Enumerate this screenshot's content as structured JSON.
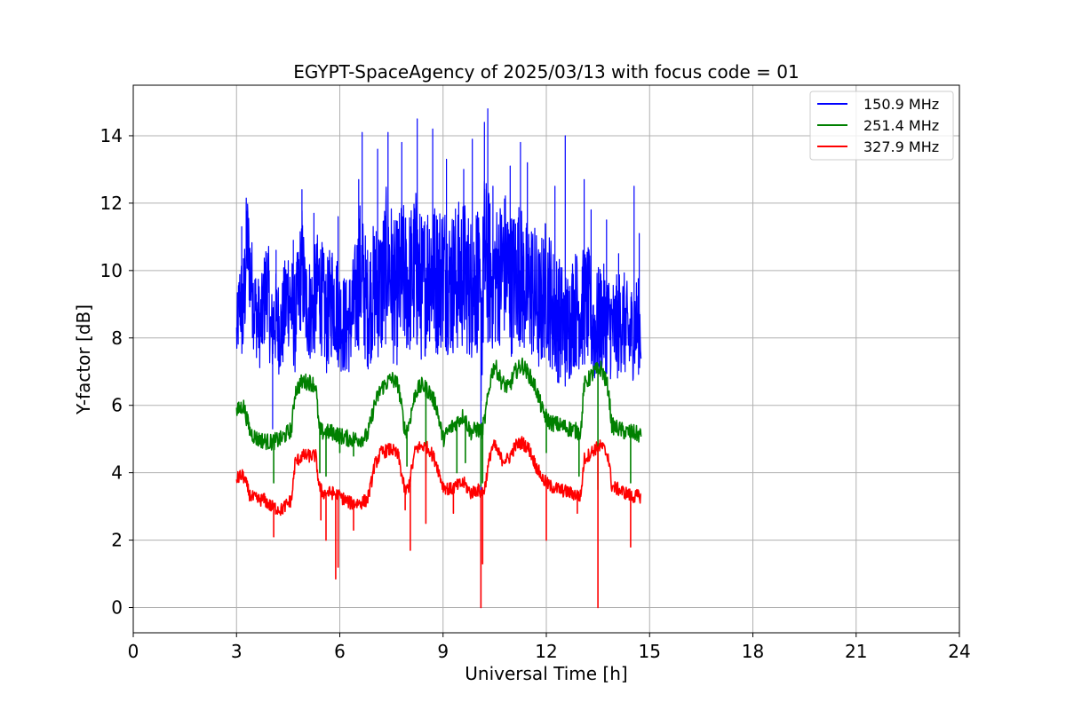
{
  "chart_data": {
    "type": "line",
    "title": "EGYPT-SpaceAgency of 2025/03/13 with focus code = 01",
    "xlabel": "Universal Time [h]",
    "ylabel": "Y-factor [dB]",
    "xlim": [
      0,
      24
    ],
    "ylim": [
      -0.75,
      15.5
    ],
    "xticks": [
      0,
      3,
      6,
      9,
      12,
      15,
      18,
      21,
      24
    ],
    "yticks": [
      0,
      2,
      4,
      6,
      8,
      10,
      12,
      14
    ],
    "grid": true,
    "legend_position": "top-right",
    "series": [
      {
        "name": "150.9 MHz",
        "color": "#0000ff",
        "x": [
          3.0,
          3.1,
          3.2,
          3.3,
          3.5,
          3.7,
          3.9,
          4.0,
          4.1,
          4.3,
          4.5,
          4.7,
          4.9,
          5.0,
          5.2,
          5.4,
          5.6,
          5.8,
          6.0,
          6.2,
          6.4,
          6.6,
          6.8,
          7.0,
          7.2,
          7.4,
          7.6,
          7.8,
          8.0,
          8.2,
          8.4,
          8.6,
          8.8,
          9.0,
          9.2,
          9.4,
          9.6,
          9.8,
          10.0,
          10.1,
          10.2,
          10.4,
          10.6,
          10.8,
          11.0,
          11.2,
          11.4,
          11.6,
          11.8,
          12.0,
          12.2,
          12.4,
          12.6,
          12.8,
          13.0,
          13.2,
          13.4,
          13.6,
          13.8,
          14.0,
          14.2,
          14.4,
          14.6,
          14.75
        ],
        "y": [
          8.0,
          9.2,
          8.6,
          11.0,
          9.0,
          8.3,
          9.8,
          8.0,
          8.6,
          8.2,
          9.4,
          8.4,
          10.2,
          9.0,
          8.8,
          9.6,
          8.5,
          9.3,
          8.6,
          8.3,
          8.8,
          10.0,
          8.9,
          9.5,
          9.4,
          10.4,
          9.2,
          9.8,
          9.6,
          10.0,
          9.4,
          10.2,
          9.7,
          10.0,
          9.6,
          9.8,
          9.9,
          9.5,
          9.9,
          8.0,
          10.4,
          9.8,
          9.9,
          10.2,
          9.6,
          10.0,
          9.4,
          9.5,
          8.8,
          9.6,
          8.8,
          8.5,
          8.2,
          8.9,
          8.8,
          9.0,
          8.2,
          8.6,
          8.4,
          8.2,
          8.6,
          8.0,
          8.4,
          8.3
        ],
        "amplitude": [
          1.0,
          1.3,
          2.0,
          1.6,
          1.4,
          1.3,
          1.6,
          1.3,
          1.5,
          1.4,
          1.7,
          1.5,
          1.8,
          1.6,
          1.6,
          1.8,
          1.7,
          1.8,
          1.6,
          1.5,
          1.7,
          2.2,
          1.9,
          2.0,
          2.2,
          2.4,
          2.2,
          2.3,
          2.2,
          2.5,
          2.2,
          2.4,
          2.3,
          2.3,
          2.2,
          2.3,
          2.3,
          2.2,
          2.4,
          2.2,
          2.6,
          2.3,
          2.2,
          2.3,
          2.2,
          2.2,
          2.1,
          2.2,
          2.0,
          2.1,
          2.0,
          1.9,
          1.8,
          1.8,
          1.8,
          1.8,
          1.7,
          1.7,
          1.6,
          1.6,
          1.6,
          1.5,
          1.5,
          1.4
        ],
        "spikes": [
          {
            "x": 3.15,
            "y": 11.3
          },
          {
            "x": 3.28,
            "y": 12.0
          },
          {
            "x": 4.05,
            "y": 5.3
          },
          {
            "x": 4.15,
            "y": 10.6
          },
          {
            "x": 4.65,
            "y": 10.9
          },
          {
            "x": 4.9,
            "y": 12.4
          },
          {
            "x": 5.25,
            "y": 11.7
          },
          {
            "x": 5.95,
            "y": 11.6
          },
          {
            "x": 6.55,
            "y": 12.7
          },
          {
            "x": 6.65,
            "y": 14.1
          },
          {
            "x": 7.1,
            "y": 13.6
          },
          {
            "x": 7.4,
            "y": 14.1
          },
          {
            "x": 7.8,
            "y": 13.8
          },
          {
            "x": 8.25,
            "y": 14.5
          },
          {
            "x": 8.7,
            "y": 14.2
          },
          {
            "x": 9.1,
            "y": 13.3
          },
          {
            "x": 9.6,
            "y": 13.0
          },
          {
            "x": 9.85,
            "y": 13.9
          },
          {
            "x": 10.1,
            "y": 0.0
          },
          {
            "x": 10.2,
            "y": 14.4
          },
          {
            "x": 10.3,
            "y": 14.8
          },
          {
            "x": 10.45,
            "y": 12.5
          },
          {
            "x": 10.95,
            "y": 13.1
          },
          {
            "x": 11.25,
            "y": 13.8
          },
          {
            "x": 11.45,
            "y": 13.2
          },
          {
            "x": 12.25,
            "y": 12.5
          },
          {
            "x": 12.55,
            "y": 14.0
          },
          {
            "x": 13.1,
            "y": 12.7
          },
          {
            "x": 13.3,
            "y": 11.8
          },
          {
            "x": 13.75,
            "y": 11.5
          },
          {
            "x": 14.1,
            "y": 10.5
          },
          {
            "x": 14.55,
            "y": 12.5
          },
          {
            "x": 14.7,
            "y": 11.1
          }
        ]
      },
      {
        "name": "251.4 MHz",
        "color": "#008000",
        "x": [
          3.0,
          3.1,
          3.2,
          3.4,
          3.6,
          4.0,
          4.3,
          4.6,
          4.7,
          4.9,
          5.1,
          5.3,
          5.4,
          5.5,
          5.8,
          6.0,
          6.3,
          6.6,
          6.8,
          6.9,
          7.0,
          7.2,
          7.5,
          7.7,
          7.9,
          8.0,
          8.2,
          8.4,
          8.6,
          8.8,
          9.0,
          9.2,
          9.4,
          9.6,
          9.8,
          10.0,
          10.1,
          10.2,
          10.4,
          10.5,
          10.7,
          10.9,
          11.1,
          11.3,
          11.5,
          11.7,
          11.9,
          12.1,
          12.4,
          12.7,
          13.0,
          13.1,
          13.4,
          13.6,
          13.8,
          13.9,
          14.1,
          14.3,
          14.5,
          14.75
        ],
        "y": [
          5.8,
          5.9,
          6.0,
          5.2,
          5.0,
          4.9,
          5.0,
          5.3,
          6.4,
          6.7,
          6.7,
          6.6,
          5.3,
          5.2,
          5.2,
          5.1,
          5.0,
          5.0,
          5.1,
          5.5,
          6.0,
          6.5,
          6.8,
          6.6,
          5.2,
          5.4,
          6.4,
          6.6,
          6.4,
          6.0,
          5.0,
          5.3,
          5.5,
          5.7,
          5.2,
          5.3,
          5.2,
          5.5,
          6.9,
          7.2,
          6.7,
          6.5,
          7.0,
          7.2,
          6.9,
          6.5,
          5.8,
          5.5,
          5.4,
          5.3,
          5.2,
          6.6,
          7.0,
          7.1,
          6.5,
          5.4,
          5.3,
          5.2,
          5.2,
          5.1
        ],
        "amplitude": 0.25,
        "dips": [
          {
            "x": 4.08,
            "y": 3.7
          },
          {
            "x": 5.42,
            "y": 4.0
          },
          {
            "x": 5.6,
            "y": 3.9
          },
          {
            "x": 6.0,
            "y": 4.6
          },
          {
            "x": 6.4,
            "y": 4.5
          },
          {
            "x": 7.95,
            "y": 4.2
          },
          {
            "x": 8.5,
            "y": 4.0
          },
          {
            "x": 9.4,
            "y": 4.0
          },
          {
            "x": 9.65,
            "y": 4.3
          },
          {
            "x": 10.1,
            "y": 3.6
          },
          {
            "x": 10.15,
            "y": 3.7
          },
          {
            "x": 12.0,
            "y": 4.6
          },
          {
            "x": 12.95,
            "y": 3.9
          },
          {
            "x": 13.5,
            "y": 3.5
          },
          {
            "x": 14.45,
            "y": 3.7
          }
        ]
      },
      {
        "name": "327.9 MHz",
        "color": "#ff0000",
        "x": [
          3.0,
          3.1,
          3.2,
          3.4,
          3.6,
          3.8,
          4.0,
          4.3,
          4.6,
          4.7,
          4.9,
          5.1,
          5.3,
          5.4,
          5.5,
          5.8,
          6.0,
          6.3,
          6.6,
          6.8,
          6.9,
          7.0,
          7.2,
          7.5,
          7.7,
          7.9,
          8.0,
          8.2,
          8.4,
          8.6,
          8.8,
          9.0,
          9.2,
          9.4,
          9.6,
          9.8,
          10.0,
          10.1,
          10.2,
          10.4,
          10.5,
          10.7,
          10.9,
          11.1,
          11.3,
          11.5,
          11.7,
          11.9,
          12.1,
          12.4,
          12.7,
          13.0,
          13.1,
          13.4,
          13.6,
          13.8,
          13.9,
          14.1,
          14.3,
          14.5,
          14.75
        ],
        "y": [
          3.8,
          3.9,
          3.9,
          3.3,
          3.2,
          3.2,
          3.0,
          2.9,
          3.2,
          4.3,
          4.5,
          4.5,
          4.5,
          3.6,
          3.4,
          3.4,
          3.3,
          3.1,
          3.1,
          3.2,
          3.6,
          4.2,
          4.6,
          4.7,
          4.5,
          3.4,
          3.6,
          4.7,
          4.8,
          4.7,
          4.3,
          3.6,
          3.5,
          3.6,
          3.7,
          3.4,
          3.5,
          3.4,
          3.5,
          4.7,
          4.8,
          4.4,
          4.4,
          4.8,
          4.9,
          4.7,
          4.2,
          3.8,
          3.6,
          3.5,
          3.4,
          3.3,
          4.4,
          4.7,
          4.8,
          4.5,
          3.6,
          3.5,
          3.4,
          3.3,
          3.3
        ],
        "amplitude": 0.2,
        "dips": [
          {
            "x": 4.08,
            "y": 2.1
          },
          {
            "x": 5.45,
            "y": 2.6
          },
          {
            "x": 5.6,
            "y": 2.0
          },
          {
            "x": 5.88,
            "y": 0.85
          },
          {
            "x": 5.95,
            "y": 1.2
          },
          {
            "x": 6.4,
            "y": 2.3
          },
          {
            "x": 7.9,
            "y": 2.9
          },
          {
            "x": 8.05,
            "y": 1.7
          },
          {
            "x": 8.5,
            "y": 2.5
          },
          {
            "x": 9.3,
            "y": 2.8
          },
          {
            "x": 10.1,
            "y": 0.0
          },
          {
            "x": 10.15,
            "y": 1.3
          },
          {
            "x": 12.0,
            "y": 2.0
          },
          {
            "x": 12.9,
            "y": 2.8
          },
          {
            "x": 13.5,
            "y": 0.0
          },
          {
            "x": 14.45,
            "y": 1.8
          }
        ]
      }
    ]
  }
}
